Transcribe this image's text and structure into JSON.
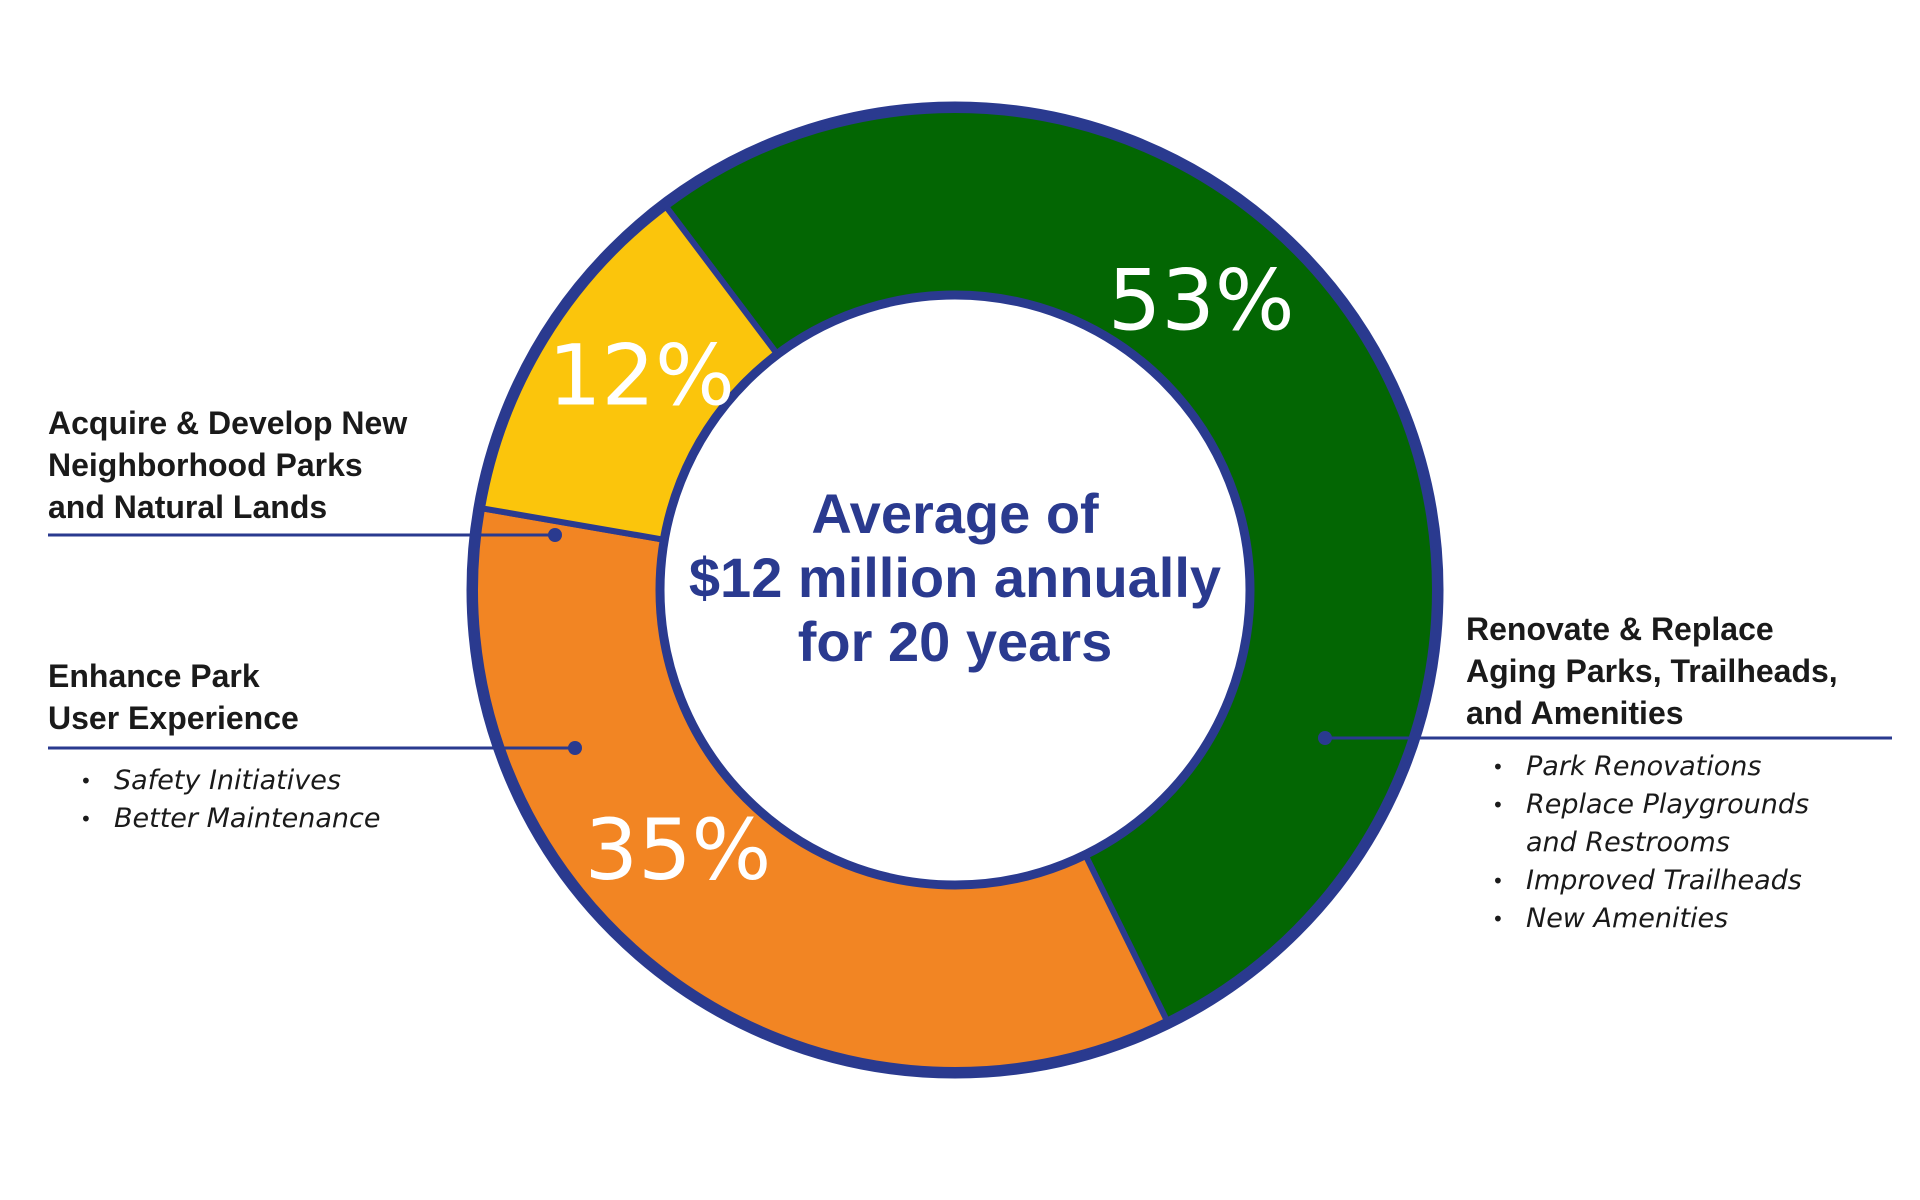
{
  "colors": {
    "outline": "#2a3a8f",
    "connector": "#2a3a8f",
    "center_text": "#2a3a8f"
  },
  "chart_data": {
    "type": "pie",
    "donut": true,
    "title": "",
    "center_text": [
      "Average of",
      "$12 million annually",
      "for 20 years"
    ],
    "slices": [
      {
        "name": "Renovate & Replace Aging Parks, Trailheads, and Amenities",
        "value": 53,
        "label": "53%",
        "color": "#036603"
      },
      {
        "name": "Enhance Park User Experience",
        "value": 35,
        "label": "35%",
        "color": "#f28523"
      },
      {
        "name": "Acquire & Develop New Neighborhood Parks and Natural Lands",
        "value": 12,
        "label": "12%",
        "color": "#fbc50c"
      }
    ]
  },
  "labels": {
    "acquire": {
      "lines": [
        "Acquire & Develop New",
        "Neighborhood Parks",
        "and Natural Lands"
      ]
    },
    "enhance": {
      "lines": [
        "Enhance Park",
        "User Experience"
      ],
      "bullets": [
        "Safety Initiatives",
        "Better Maintenance"
      ]
    },
    "renovate": {
      "lines": [
        "Renovate & Replace",
        "Aging Parks, Trailheads,",
        "and Amenities"
      ],
      "bullets": [
        "Park Renovations",
        "Replace Playgrounds",
        "and Restrooms",
        "Improved Trailheads",
        "New Amenities"
      ]
    }
  }
}
